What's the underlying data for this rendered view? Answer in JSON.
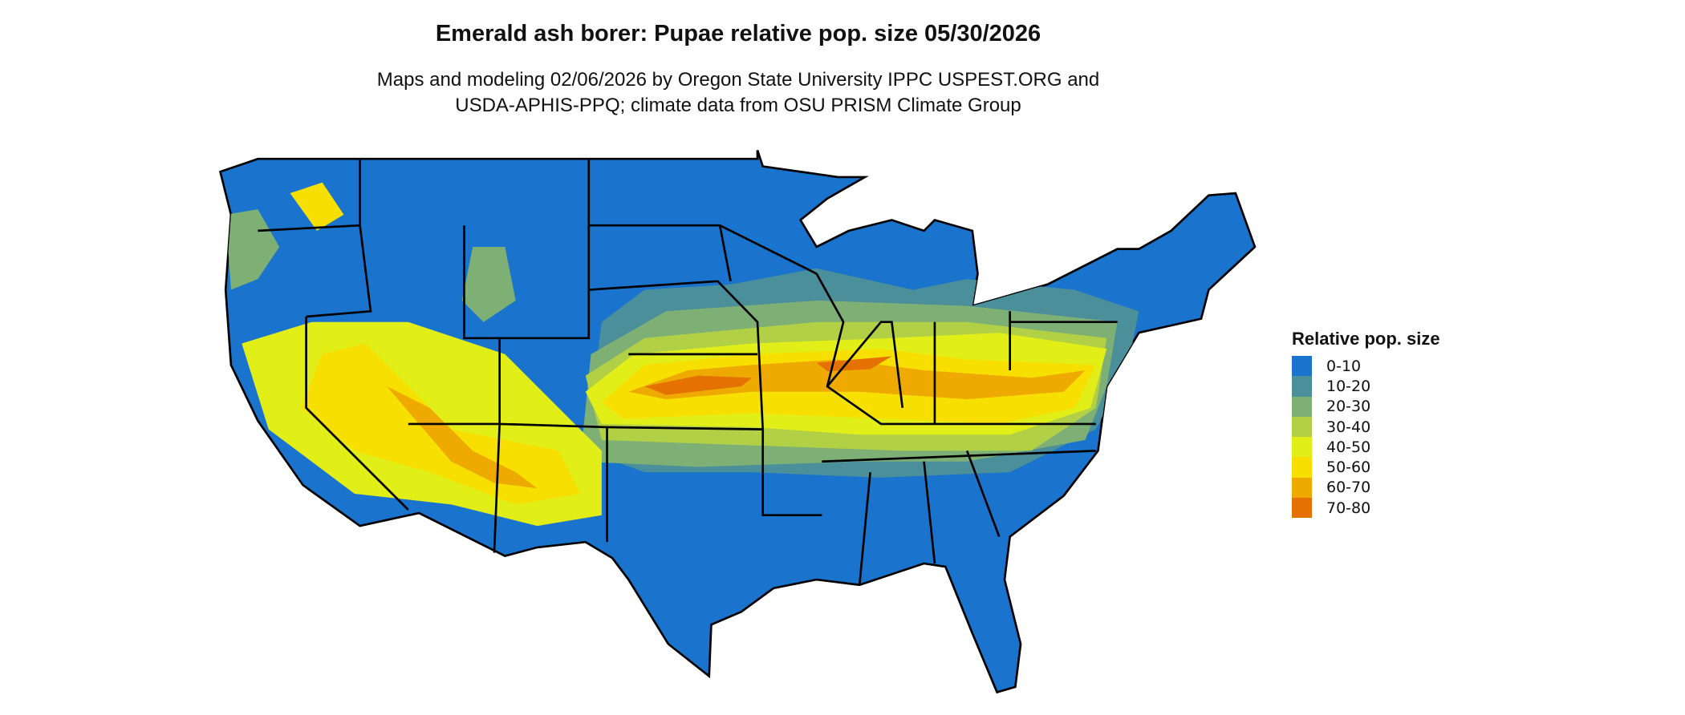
{
  "title": "Emerald ash borer: Pupae relative pop. size 05/30/2026",
  "subtitle_lines": [
    "Maps and modeling 02/06/2026 by Oregon State University IPPC USPEST.ORG and",
    "USDA-APHIS-PPQ; climate data from OSU PRISM Climate Group"
  ],
  "legend": {
    "title": "Relative pop. size",
    "items": [
      {
        "label": "0-10",
        "color": "#1a73cc"
      },
      {
        "label": "10-20",
        "color": "#4a8f9a"
      },
      {
        "label": "20-30",
        "color": "#7eb075"
      },
      {
        "label": "30-40",
        "color": "#b2d046"
      },
      {
        "label": "40-50",
        "color": "#e2ee18"
      },
      {
        "label": "50-60",
        "color": "#f7e000"
      },
      {
        "label": "60-70",
        "color": "#eeaa00"
      },
      {
        "label": "70-80",
        "color": "#e57200"
      }
    ]
  }
}
